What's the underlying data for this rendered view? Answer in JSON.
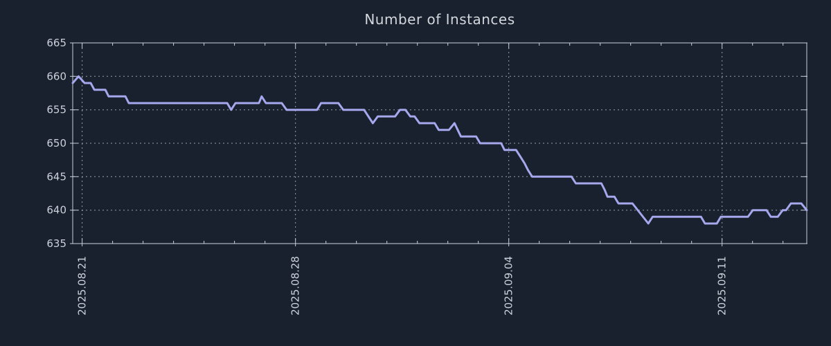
{
  "title": "Number of Instances",
  "colors": {
    "background": "#19202e",
    "line": "#a5a8ec",
    "grid": "#99a0ac",
    "axis": "#ccd2dc",
    "tick_text": "#ccd2da",
    "title_text": "#d4d7dc"
  },
  "chart_data": {
    "type": "line",
    "title": "Number of Instances",
    "x_unit": "days since 2025.08.21",
    "x_range": [
      -0.31,
      23.78
    ],
    "ylim": [
      635,
      665
    ],
    "y_ticks": [
      635,
      640,
      645,
      650,
      655,
      660,
      665
    ],
    "x_major_ticks": [
      {
        "day": 0,
        "label": "2025.08.21"
      },
      {
        "day": 7,
        "label": "2025.08.28"
      },
      {
        "day": 14,
        "label": "2025.09.04"
      },
      {
        "day": 21,
        "label": "2025.09.11"
      }
    ],
    "x_minor_tick_interval_days": 1,
    "grid": true,
    "legend": false,
    "series": [
      {
        "name": "instances",
        "points": [
          [
            -0.31,
            659
          ],
          [
            -0.12,
            660
          ],
          [
            0.08,
            659
          ],
          [
            0.28,
            659
          ],
          [
            0.4,
            658
          ],
          [
            0.76,
            658
          ],
          [
            0.87,
            657
          ],
          [
            1.42,
            657
          ],
          [
            1.53,
            656
          ],
          [
            4.76,
            656
          ],
          [
            4.89,
            655
          ],
          [
            5.03,
            656
          ],
          [
            5.8,
            656
          ],
          [
            5.89,
            657
          ],
          [
            6.03,
            656
          ],
          [
            6.55,
            656
          ],
          [
            6.71,
            655
          ],
          [
            7.71,
            655
          ],
          [
            7.84,
            656
          ],
          [
            8.41,
            656
          ],
          [
            8.57,
            655
          ],
          [
            9.25,
            655
          ],
          [
            9.54,
            653
          ],
          [
            9.7,
            654
          ],
          [
            10.27,
            654
          ],
          [
            10.43,
            655
          ],
          [
            10.61,
            655
          ],
          [
            10.77,
            654
          ],
          [
            10.91,
            654
          ],
          [
            11.07,
            653
          ],
          [
            11.57,
            653
          ],
          [
            11.7,
            652
          ],
          [
            12.04,
            652
          ],
          [
            12.22,
            653
          ],
          [
            12.43,
            651
          ],
          [
            12.93,
            651
          ],
          [
            13.06,
            650
          ],
          [
            13.75,
            650
          ],
          [
            13.86,
            649
          ],
          [
            14.24,
            649
          ],
          [
            14.38,
            648
          ],
          [
            14.52,
            647
          ],
          [
            14.63,
            646
          ],
          [
            14.77,
            645
          ],
          [
            16.06,
            645
          ],
          [
            16.2,
            644
          ],
          [
            17.04,
            644
          ],
          [
            17.15,
            643
          ],
          [
            17.24,
            642
          ],
          [
            17.47,
            642
          ],
          [
            17.6,
            641
          ],
          [
            18.06,
            641
          ],
          [
            18.58,
            638
          ],
          [
            18.72,
            639
          ],
          [
            20.31,
            639
          ],
          [
            20.44,
            638
          ],
          [
            20.83,
            638
          ],
          [
            20.96,
            639
          ],
          [
            21.85,
            639
          ],
          [
            22.01,
            640
          ],
          [
            22.46,
            640
          ],
          [
            22.6,
            639
          ],
          [
            22.83,
            639
          ],
          [
            22.99,
            640
          ],
          [
            23.1,
            640
          ],
          [
            23.26,
            641
          ],
          [
            23.6,
            641
          ],
          [
            23.78,
            640
          ]
        ]
      }
    ]
  }
}
